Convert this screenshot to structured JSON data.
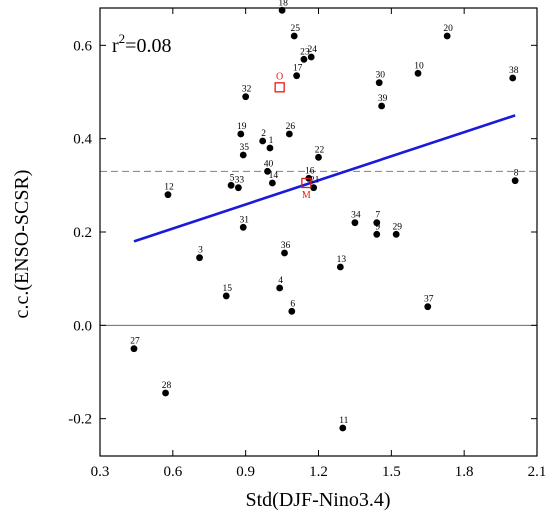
{
  "chart_data": {
    "type": "scatter",
    "xlabel": "Std(DJF-Nino3.4)",
    "ylabel": "c.c.(ENSO-SCSR)",
    "xlim": [
      0.3,
      2.1
    ],
    "ylim": [
      -0.28,
      0.68
    ],
    "xticks": [
      "0.3",
      "0.6",
      "0.9",
      "1.2",
      "1.5",
      "1.8",
      "2.1"
    ],
    "xtick_values": [
      0.3,
      0.6,
      0.9,
      1.2,
      1.5,
      1.8,
      2.1
    ],
    "yticks": [
      "-0.2",
      "0.0",
      "0.2",
      "0.4",
      "0.6"
    ],
    "ytick_values": [
      -0.2,
      0.0,
      0.2,
      0.4,
      0.6
    ],
    "annotation": "r²=0.08",
    "annotation_base": "r",
    "annotation_sup": "2",
    "annotation_rest": "=0.08",
    "reference_line_y": 0.33,
    "zero_line_y": 0.0,
    "trend_line": {
      "x": [
        0.44,
        2.01
      ],
      "y": [
        0.18,
        0.45
      ],
      "color": "#1a1adb"
    },
    "points": [
      {
        "label": "1",
        "x": 1.0,
        "y": 0.38
      },
      {
        "label": "2",
        "x": 0.97,
        "y": 0.395
      },
      {
        "label": "3",
        "x": 0.71,
        "y": 0.145
      },
      {
        "label": "4",
        "x": 1.04,
        "y": 0.08
      },
      {
        "label": "5",
        "x": 0.84,
        "y": 0.3
      },
      {
        "label": "6",
        "x": 1.09,
        "y": 0.03
      },
      {
        "label": "7",
        "x": 1.44,
        "y": 0.22
      },
      {
        "label": "8",
        "x": 2.01,
        "y": 0.31
      },
      {
        "label": "9",
        "x": 1.44,
        "y": 0.195
      },
      {
        "label": "10",
        "x": 1.61,
        "y": 0.54
      },
      {
        "label": "11",
        "x": 1.3,
        "y": -0.22
      },
      {
        "label": "12",
        "x": 0.58,
        "y": 0.28
      },
      {
        "label": "13",
        "x": 1.29,
        "y": 0.125
      },
      {
        "label": "14",
        "x": 1.01,
        "y": 0.305
      },
      {
        "label": "15",
        "x": 0.82,
        "y": 0.063
      },
      {
        "label": "16",
        "x": 1.16,
        "y": 0.315
      },
      {
        "label": "17",
        "x": 1.11,
        "y": 0.535
      },
      {
        "label": "18",
        "x": 1.05,
        "y": 0.675
      },
      {
        "label": "19",
        "x": 0.88,
        "y": 0.41
      },
      {
        "label": "20",
        "x": 1.73,
        "y": 0.62
      },
      {
        "label": "21",
        "x": 1.18,
        "y": 0.295
      },
      {
        "label": "22",
        "x": 1.2,
        "y": 0.36
      },
      {
        "label": "23",
        "x": 1.14,
        "y": 0.57
      },
      {
        "label": "24",
        "x": 1.17,
        "y": 0.575
      },
      {
        "label": "25",
        "x": 1.1,
        "y": 0.62
      },
      {
        "label": "26",
        "x": 1.08,
        "y": 0.41
      },
      {
        "label": "27",
        "x": 0.44,
        "y": -0.05
      },
      {
        "label": "28",
        "x": 0.57,
        "y": -0.145
      },
      {
        "label": "29",
        "x": 1.52,
        "y": 0.195
      },
      {
        "label": "30",
        "x": 1.45,
        "y": 0.52
      },
      {
        "label": "31",
        "x": 0.89,
        "y": 0.21
      },
      {
        "label": "32",
        "x": 0.9,
        "y": 0.49
      },
      {
        "label": "33",
        "x": 0.87,
        "y": 0.295
      },
      {
        "label": "34",
        "x": 1.35,
        "y": 0.22
      },
      {
        "label": "35",
        "x": 0.89,
        "y": 0.365
      },
      {
        "label": "36",
        "x": 1.06,
        "y": 0.155
      },
      {
        "label": "37",
        "x": 1.65,
        "y": 0.04
      },
      {
        "label": "38",
        "x": 2.0,
        "y": 0.53
      },
      {
        "label": "39",
        "x": 1.46,
        "y": 0.47
      },
      {
        "label": "40",
        "x": 0.99,
        "y": 0.33
      }
    ],
    "special_points": [
      {
        "label": "O",
        "x": 1.04,
        "y": 0.51
      },
      {
        "label": "M",
        "x": 1.15,
        "y": 0.305
      }
    ],
    "colors": {
      "points": "#000000",
      "trend": "#1a1adb",
      "special": "#e01b1b",
      "reference": "#808080"
    }
  }
}
